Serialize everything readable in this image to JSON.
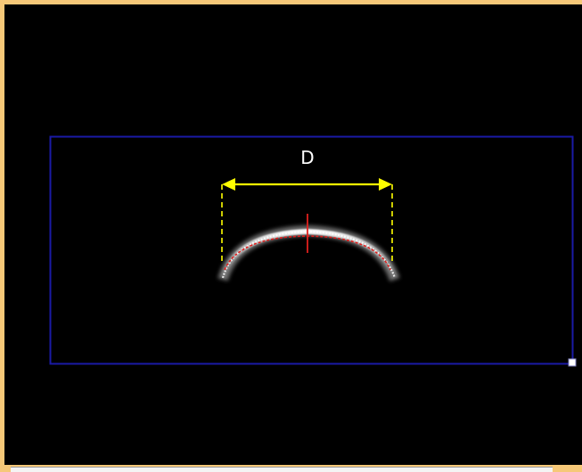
{
  "measurement": {
    "label": "D"
  },
  "colors": {
    "frame_border": "#f6c878",
    "background": "#000000",
    "roi_box": "#1a1aa6",
    "caliper": "#ffff00",
    "center_marker": "#e0201e",
    "arc": "#d8d8d8",
    "resize_handle": "#ffffff"
  }
}
